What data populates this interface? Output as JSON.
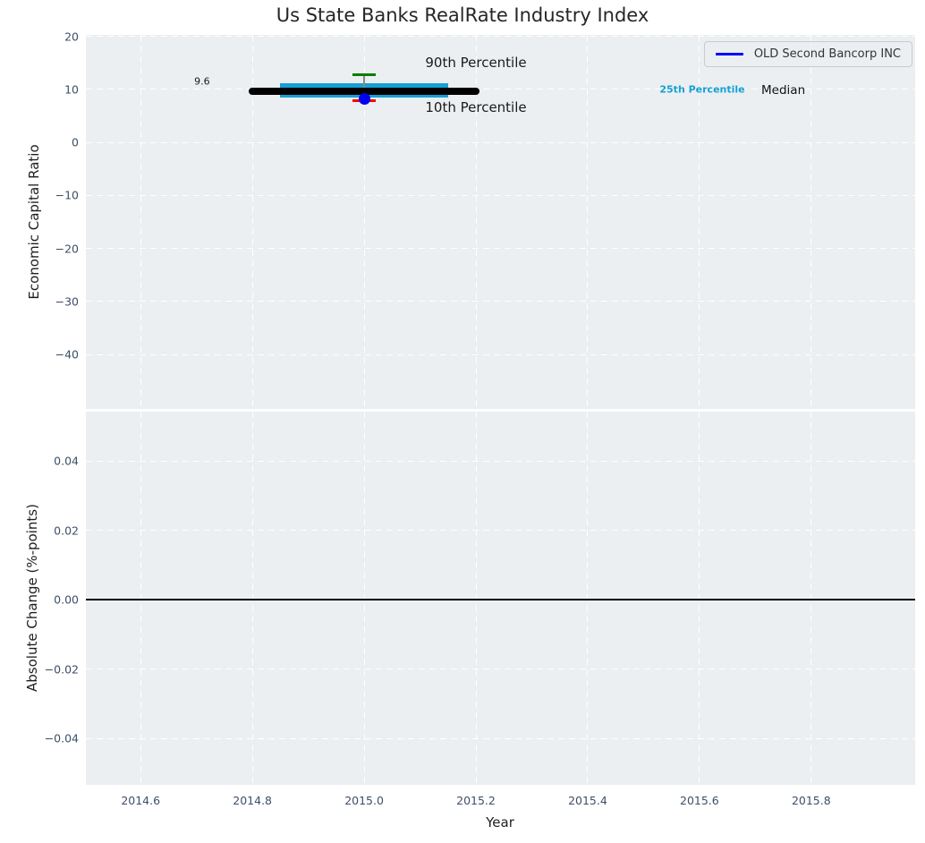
{
  "figure": {
    "background": "#ffffff",
    "plot_background": "#eceff1",
    "grid_color": "#ffffff"
  },
  "chart_data": [
    {
      "id": "economic-capital-ratio-panel",
      "type": "box",
      "title": "Us State Banks RealRate Industry Index",
      "ylabel": "Economic Capital Ratio",
      "xlabel": "",
      "xlim": [
        2014.502,
        2015.986
      ],
      "ylim": [
        -50.3,
        20.3
      ],
      "grid": true,
      "xticklabels_visible": false,
      "xticks": [
        {
          "v": 2014.6,
          "label": "2014.6"
        },
        {
          "v": 2014.8,
          "label": "2014.8"
        },
        {
          "v": 2015.0,
          "label": "2015.0"
        },
        {
          "v": 2015.2,
          "label": "2015.2"
        },
        {
          "v": 2015.4,
          "label": "2015.4"
        },
        {
          "v": 2015.6,
          "label": "2015.6"
        },
        {
          "v": 2015.8,
          "label": "2015.8"
        }
      ],
      "yticks": [
        {
          "v": 20,
          "label": "20"
        },
        {
          "v": 10,
          "label": "10"
        },
        {
          "v": 0,
          "label": "0"
        },
        {
          "v": -10,
          "label": "−10"
        },
        {
          "v": -20,
          "label": "−20"
        },
        {
          "v": -30,
          "label": "−30"
        },
        {
          "v": -40,
          "label": "−40"
        }
      ],
      "series": {
        "year": 2015.0,
        "median": 9.6,
        "p25": 8.4,
        "p75": 11.2,
        "p10": 7.9,
        "p90": 12.8,
        "company_value": 8.3,
        "box_span": [
          2014.85,
          2015.15
        ],
        "median_span": [
          2014.8,
          2015.2
        ]
      },
      "annotations": [
        {
          "text": "90th Percentile",
          "x": 2015.2,
          "y": 15.0,
          "color": "#1a1a1a",
          "size": 15,
          "weight": "normal"
        },
        {
          "text": "10th Percentile",
          "x": 2015.2,
          "y": 6.55,
          "color": "#1a1a1a",
          "size": 15,
          "weight": "normal"
        },
        {
          "text": "9.6",
          "x": 2014.71,
          "y": 11.55,
          "color": "#1a1a1a",
          "size": 11,
          "weight": "normal"
        },
        {
          "text": "25th Percentile",
          "x": 2015.605,
          "y": 10.05,
          "color": "#15a0d5",
          "size": 11,
          "weight": "bold"
        },
        {
          "text": "Median",
          "x": 2015.75,
          "y": 9.9,
          "color": "#111111",
          "size": 13.5,
          "weight": "normal"
        }
      ],
      "legend": {
        "position": "upper right",
        "entries": [
          {
            "label": "OLD Second Bancorp INC",
            "color": "#0000ff"
          }
        ]
      },
      "colors": {
        "box": "#15a0d5",
        "median": "#000000",
        "p90": "#008000",
        "p10": "#ff0000",
        "company_marker": "#0000ee",
        "whisker": "#888888"
      }
    },
    {
      "id": "absolute-change-panel",
      "type": "line",
      "title": "",
      "ylabel": "Absolute Change (%-points)",
      "xlabel": "Year",
      "xlim": [
        2014.502,
        2015.986
      ],
      "ylim": [
        -0.0534,
        0.0542
      ],
      "grid": true,
      "xticklabels_visible": true,
      "xticks": [
        {
          "v": 2014.6,
          "label": "2014.6"
        },
        {
          "v": 2014.8,
          "label": "2014.8"
        },
        {
          "v": 2015.0,
          "label": "2015.0"
        },
        {
          "v": 2015.2,
          "label": "2015.2"
        },
        {
          "v": 2015.4,
          "label": "2015.4"
        },
        {
          "v": 2015.6,
          "label": "2015.6"
        },
        {
          "v": 2015.8,
          "label": "2015.8"
        }
      ],
      "yticks": [
        {
          "v": 0.04,
          "label": "0.04"
        },
        {
          "v": 0.02,
          "label": "0.02"
        },
        {
          "v": 0,
          "label": "0.00"
        },
        {
          "v": -0.02,
          "label": "−0.02"
        },
        {
          "v": -0.04,
          "label": "−0.04"
        }
      ],
      "zero_line": {
        "y": 0.0,
        "color": "#000000"
      },
      "series": []
    }
  ]
}
